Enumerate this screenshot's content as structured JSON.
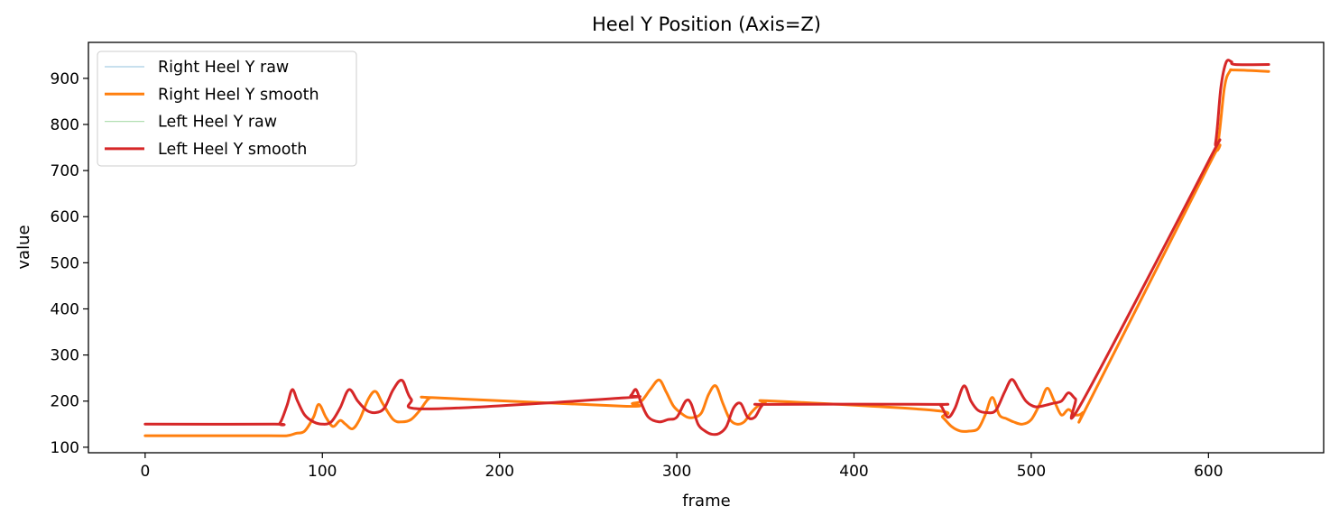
{
  "chart_data": {
    "type": "line",
    "title": "Heel Y Position (Axis=Z)",
    "xlabel": "frame",
    "ylabel": "value",
    "xlim": [
      -32,
      665
    ],
    "ylim": [
      88,
      978
    ],
    "xticks": [
      0,
      100,
      200,
      300,
      400,
      500,
      600
    ],
    "yticks": [
      100,
      200,
      300,
      400,
      500,
      600,
      700,
      800,
      900
    ],
    "legend_position": "upper-left",
    "grid": false,
    "series": [
      {
        "name": "Right Heel Y raw",
        "color": "#a6cee3",
        "width": 1.2,
        "x": [
          0,
          70,
          80,
          85,
          90,
          95,
          98,
          102,
          106,
          110,
          113,
          117,
          121,
          126,
          130,
          134,
          140,
          145,
          150,
          155,
          160,
          165,
          270,
          275,
          280,
          285,
          290,
          294,
          298,
          302,
          306,
          310,
          314,
          318,
          322,
          326,
          330,
          334,
          338,
          342,
          346,
          350,
          355,
          445,
          450,
          455,
          460,
          465,
          470,
          474,
          478,
          482,
          486,
          490,
          495,
          500,
          505,
          509,
          513,
          517,
          521,
          525,
          529,
          533,
          600,
          605,
          609,
          612,
          615,
          634
        ],
        "values": [
          125,
          125,
          125,
          130,
          135,
          165,
          193,
          165,
          145,
          158,
          150,
          140,
          160,
          205,
          221,
          195,
          160,
          155,
          160,
          180,
          205,
          207,
          189,
          195,
          200,
          225,
          246,
          220,
          190,
          175,
          165,
          165,
          175,
          215,
          233,
          195,
          160,
          150,
          155,
          175,
          190,
          198,
          200,
          180,
          165,
          145,
          135,
          135,
          140,
          170,
          208,
          170,
          162,
          155,
          150,
          160,
          195,
          228,
          200,
          170,
          182,
          170,
          175,
          200,
          710,
          750,
          880,
          915,
          918,
          915
        ]
      },
      {
        "name": "Right Heel Y smooth",
        "color": "#ff7f0e",
        "width": 3,
        "x": [
          0,
          70,
          80,
          85,
          90,
          95,
          98,
          102,
          106,
          110,
          113,
          117,
          121,
          126,
          130,
          134,
          140,
          145,
          150,
          155,
          160,
          165,
          270,
          275,
          280,
          285,
          290,
          294,
          298,
          302,
          306,
          310,
          314,
          318,
          322,
          326,
          330,
          334,
          338,
          342,
          346,
          350,
          355,
          445,
          450,
          455,
          460,
          465,
          470,
          474,
          478,
          482,
          486,
          490,
          495,
          500,
          505,
          509,
          513,
          517,
          521,
          525,
          529,
          533,
          600,
          605,
          609,
          612,
          615,
          634
        ],
        "values": [
          125,
          125,
          125,
          130,
          135,
          165,
          193,
          165,
          145,
          158,
          150,
          140,
          160,
          205,
          221,
          195,
          160,
          155,
          160,
          180,
          205,
          207,
          189,
          195,
          200,
          225,
          246,
          220,
          190,
          175,
          165,
          165,
          175,
          215,
          233,
          195,
          160,
          150,
          155,
          175,
          190,
          198,
          200,
          180,
          165,
          145,
          135,
          135,
          140,
          170,
          208,
          170,
          162,
          155,
          150,
          160,
          195,
          228,
          200,
          170,
          182,
          170,
          175,
          200,
          710,
          750,
          880,
          915,
          918,
          915
        ]
      },
      {
        "name": "Left Heel Y raw",
        "color": "#b2dfb2",
        "width": 1.2,
        "x": [
          0,
          72,
          76,
          80,
          83,
          86,
          90,
          95,
          100,
          105,
          110,
          115,
          120,
          125,
          130,
          135,
          140,
          145,
          150,
          160,
          270,
          274,
          277,
          280,
          284,
          290,
          295,
          300,
          305,
          308,
          312,
          316,
          320,
          324,
          328,
          332,
          336,
          340,
          344,
          348,
          352,
          445,
          449,
          453,
          457,
          462,
          466,
          470,
          475,
          480,
          485,
          489,
          493,
          497,
          502,
          507,
          512,
          517,
          521,
          525,
          529,
          600,
          604,
          607,
          610,
          613,
          615,
          634
        ],
        "values": [
          150,
          150,
          152,
          190,
          225,
          200,
          170,
          155,
          150,
          155,
          185,
          225,
          200,
          180,
          175,
          185,
          225,
          245,
          205,
          183,
          207,
          212,
          225,
          195,
          165,
          155,
          160,
          165,
          200,
          195,
          150,
          135,
          128,
          130,
          145,
          185,
          195,
          165,
          165,
          190,
          193,
          193,
          190,
          165,
          185,
          233,
          200,
          180,
          175,
          180,
          220,
          247,
          225,
          200,
          188,
          190,
          195,
          200,
          218,
          205,
          200,
          720,
          760,
          880,
          935,
          936,
          930,
          930
        ]
      },
      {
        "name": "Left Heel Y smooth",
        "color": "#d62728",
        "width": 3,
        "x": [
          0,
          72,
          76,
          80,
          83,
          86,
          90,
          95,
          100,
          105,
          110,
          115,
          120,
          125,
          130,
          135,
          140,
          145,
          150,
          160,
          270,
          274,
          277,
          280,
          284,
          290,
          295,
          300,
          305,
          308,
          312,
          316,
          320,
          324,
          328,
          332,
          336,
          340,
          344,
          348,
          352,
          445,
          449,
          453,
          457,
          462,
          466,
          470,
          475,
          480,
          485,
          489,
          493,
          497,
          502,
          507,
          512,
          517,
          521,
          525,
          529,
          600,
          604,
          607,
          610,
          613,
          615,
          634
        ],
        "values": [
          150,
          150,
          152,
          190,
          225,
          200,
          170,
          155,
          150,
          155,
          185,
          225,
          200,
          180,
          175,
          185,
          225,
          245,
          205,
          183,
          207,
          212,
          225,
          195,
          165,
          155,
          160,
          165,
          200,
          195,
          150,
          135,
          128,
          130,
          145,
          185,
          195,
          165,
          165,
          190,
          193,
          193,
          190,
          165,
          185,
          233,
          200,
          180,
          175,
          180,
          220,
          247,
          225,
          200,
          188,
          190,
          195,
          200,
          218,
          205,
          200,
          720,
          760,
          880,
          935,
          936,
          930,
          930
        ]
      }
    ]
  }
}
